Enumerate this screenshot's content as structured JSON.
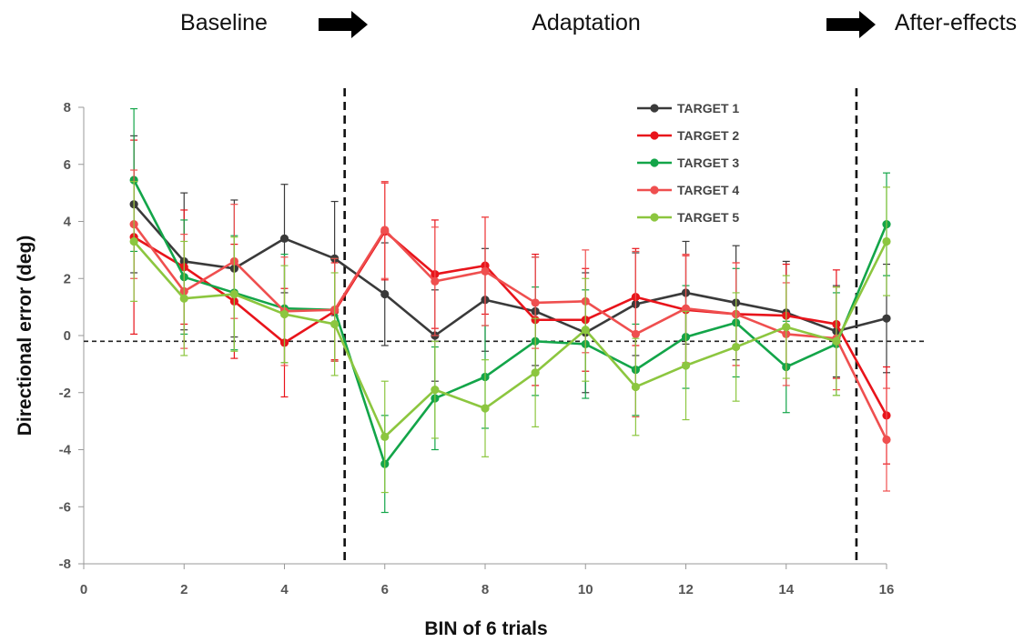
{
  "chart_data": {
    "type": "line",
    "title": "",
    "xlabel": "BIN of 6 trials",
    "ylabel": "Directional error (deg)",
    "xlim": [
      0,
      16
    ],
    "ylim": [
      -8,
      8
    ],
    "xticks": [
      0,
      2,
      4,
      6,
      8,
      10,
      12,
      14,
      16
    ],
    "yticks": [
      -8,
      -6,
      -4,
      -2,
      0,
      2,
      4,
      6,
      8
    ],
    "grid": false,
    "legend_position": "top-right",
    "phases": [
      {
        "label": "Baseline"
      },
      {
        "label": "Adaptation"
      },
      {
        "label": "After-effects"
      }
    ],
    "phase_dividers_x": [
      5.2,
      15.4
    ],
    "reference_line_y": -0.2,
    "x": [
      1,
      2,
      3,
      4,
      5,
      6,
      7,
      8,
      9,
      10,
      11,
      12,
      13,
      14,
      15,
      16
    ],
    "series": [
      {
        "name": "TARGET 1",
        "color": "#3a3a3a",
        "values": [
          4.6,
          2.6,
          2.35,
          3.4,
          2.7,
          1.45,
          0.0,
          1.25,
          0.85,
          0.1,
          1.1,
          1.5,
          1.15,
          0.8,
          0.15,
          0.6
        ],
        "errors": [
          2.4,
          2.4,
          2.4,
          1.9,
          2.0,
          1.8,
          1.6,
          1.8,
          1.9,
          2.1,
          1.8,
          1.8,
          2.0,
          1.8,
          1.6,
          1.9
        ]
      },
      {
        "name": "TARGET 2",
        "color": "#e8141b",
        "values": [
          3.45,
          2.4,
          1.2,
          -0.25,
          0.85,
          3.65,
          2.15,
          2.45,
          0.55,
          0.55,
          1.35,
          0.9,
          0.75,
          0.7,
          0.4,
          -2.8
        ],
        "errors": [
          3.4,
          2.0,
          2.0,
          1.9,
          1.7,
          1.7,
          1.9,
          1.7,
          2.3,
          1.8,
          1.7,
          1.9,
          1.8,
          1.8,
          1.9,
          1.7
        ]
      },
      {
        "name": "TARGET 3",
        "color": "#13a549",
        "values": [
          5.45,
          2.05,
          1.5,
          0.95,
          0.9,
          -4.5,
          -2.2,
          -1.45,
          -0.2,
          -0.3,
          -1.2,
          -0.05,
          0.45,
          -1.1,
          -0.3,
          3.9
        ],
        "errors": [
          2.5,
          2.0,
          2.0,
          1.9,
          1.8,
          1.7,
          1.8,
          1.8,
          1.9,
          1.9,
          1.6,
          1.8,
          1.9,
          1.6,
          1.8,
          1.8
        ]
      },
      {
        "name": "TARGET 4",
        "color": "#ef4f4f",
        "values": [
          3.9,
          1.55,
          2.6,
          0.85,
          0.9,
          3.7,
          1.9,
          2.25,
          1.15,
          1.2,
          0.05,
          0.95,
          0.75,
          0.05,
          -0.1,
          -3.65
        ],
        "errors": [
          1.9,
          2.0,
          2.0,
          1.9,
          1.8,
          1.7,
          1.9,
          1.9,
          1.6,
          1.8,
          2.9,
          1.9,
          1.8,
          1.8,
          1.8,
          1.8
        ]
      },
      {
        "name": "TARGET 5",
        "color": "#8cc63f",
        "values": [
          3.3,
          1.3,
          1.45,
          0.75,
          0.4,
          -3.55,
          -1.9,
          -2.55,
          -1.3,
          0.2,
          -1.8,
          -1.05,
          -0.4,
          0.3,
          -0.2,
          3.3
        ],
        "errors": [
          2.1,
          2.0,
          2.0,
          1.7,
          1.8,
          1.95,
          1.7,
          1.7,
          1.9,
          1.8,
          1.7,
          1.9,
          1.9,
          1.8,
          1.9,
          1.9
        ]
      }
    ]
  }
}
